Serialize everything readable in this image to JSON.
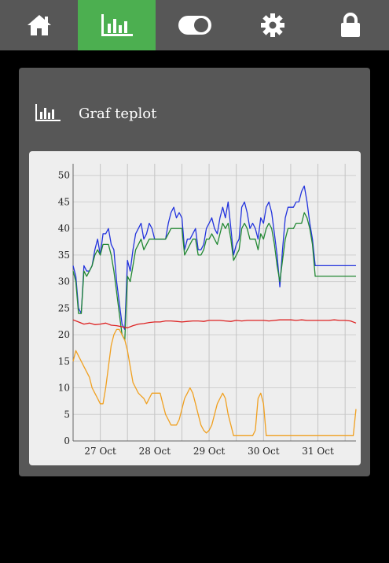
{
  "nav": {
    "items": [
      {
        "icon": "home-icon",
        "active": false
      },
      {
        "icon": "chart-icon",
        "active": true
      },
      {
        "icon": "toggle-icon",
        "active": false
      },
      {
        "icon": "gear-icon",
        "active": false
      },
      {
        "icon": "lock-icon",
        "active": false
      }
    ],
    "colors": {
      "bar": "#575757",
      "active": "#4caf50",
      "icon": "#ffffff"
    }
  },
  "card": {
    "title": "Graf teplot",
    "icon": "chart-icon"
  },
  "chart_data": {
    "type": "line",
    "xlim": [
      0,
      5.2
    ],
    "ylim": [
      0,
      51
    ],
    "yticks": [
      0,
      5,
      10,
      15,
      20,
      25,
      30,
      35,
      40,
      45,
      50
    ],
    "xticks": [
      {
        "x": 0.5,
        "label": "27 Oct"
      },
      {
        "x": 1.5,
        "label": "28 Oct"
      },
      {
        "x": 2.5,
        "label": "29 Oct"
      },
      {
        "x": 3.5,
        "label": "30 Oct"
      },
      {
        "x": 4.5,
        "label": "31 Oct"
      }
    ],
    "x_grid_extra": [
      1.0,
      2.0,
      3.0,
      4.0,
      5.0
    ],
    "grid": true,
    "legend": "none",
    "series": [
      {
        "color": "#2233dd",
        "x": [
          0.0,
          0.05,
          0.1,
          0.15,
          0.2,
          0.25,
          0.3,
          0.35,
          0.4,
          0.45,
          0.5,
          0.55,
          0.6,
          0.65,
          0.7,
          0.75,
          0.8,
          0.85,
          0.9,
          0.95,
          1.0,
          1.05,
          1.1,
          1.15,
          1.2,
          1.25,
          1.3,
          1.35,
          1.4,
          1.45,
          1.5,
          1.55,
          1.6,
          1.65,
          1.7,
          1.75,
          1.8,
          1.85,
          1.9,
          1.95,
          2.0,
          2.05,
          2.1,
          2.15,
          2.2,
          2.25,
          2.3,
          2.35,
          2.4,
          2.45,
          2.5,
          2.55,
          2.6,
          2.65,
          2.7,
          2.75,
          2.8,
          2.85,
          2.9,
          2.95,
          3.0,
          3.05,
          3.1,
          3.15,
          3.2,
          3.25,
          3.3,
          3.35,
          3.4,
          3.45,
          3.5,
          3.55,
          3.6,
          3.65,
          3.7,
          3.75,
          3.8,
          3.85,
          3.9,
          3.95,
          4.0,
          4.05,
          4.1,
          4.15,
          4.2,
          4.25,
          4.3,
          4.35,
          4.4,
          4.45,
          4.5,
          4.55,
          4.6,
          4.65,
          4.7,
          4.75,
          4.8,
          4.85,
          4.9,
          4.95,
          5.0,
          5.05,
          5.1,
          5.15,
          5.2
        ],
        "y": [
          33,
          31,
          25,
          24,
          33,
          32,
          32,
          33,
          36,
          38,
          35,
          39,
          39,
          40,
          37,
          36,
          30,
          26,
          22,
          21,
          34,
          32,
          36,
          39,
          40,
          41,
          38,
          39,
          41,
          40,
          38,
          38,
          38,
          38,
          38,
          41,
          43,
          44,
          42,
          43,
          42,
          36,
          38,
          38,
          39,
          40,
          36,
          36,
          37,
          40,
          41,
          42,
          40,
          39,
          42,
          44,
          42,
          45,
          40,
          35,
          37,
          38,
          44,
          45,
          43,
          40,
          41,
          40,
          38,
          42,
          41,
          44,
          45,
          43,
          39,
          35,
          29,
          36,
          42,
          44,
          44,
          44,
          45,
          45,
          47,
          48,
          45,
          41,
          38,
          33,
          33,
          33,
          33,
          33,
          33,
          33,
          33,
          33,
          33,
          33,
          33,
          33,
          33,
          33,
          33
        ]
      },
      {
        "color": "#228833",
        "x": [
          0.0,
          0.05,
          0.1,
          0.15,
          0.2,
          0.25,
          0.3,
          0.35,
          0.4,
          0.45,
          0.5,
          0.55,
          0.6,
          0.65,
          0.7,
          0.75,
          0.8,
          0.85,
          0.9,
          0.95,
          1.0,
          1.05,
          1.1,
          1.15,
          1.2,
          1.25,
          1.3,
          1.35,
          1.4,
          1.45,
          1.5,
          1.55,
          1.6,
          1.65,
          1.7,
          1.75,
          1.8,
          1.85,
          1.9,
          1.95,
          2.0,
          2.05,
          2.1,
          2.15,
          2.2,
          2.25,
          2.3,
          2.35,
          2.4,
          2.45,
          2.5,
          2.55,
          2.6,
          2.65,
          2.7,
          2.75,
          2.8,
          2.85,
          2.9,
          2.95,
          3.0,
          3.05,
          3.1,
          3.15,
          3.2,
          3.25,
          3.3,
          3.35,
          3.4,
          3.45,
          3.5,
          3.55,
          3.6,
          3.65,
          3.7,
          3.75,
          3.8,
          3.85,
          3.9,
          3.95,
          4.0,
          4.05,
          4.1,
          4.15,
          4.2,
          4.25,
          4.3,
          4.35,
          4.4,
          4.45,
          4.5,
          4.55,
          4.6,
          4.65,
          4.7,
          4.75,
          4.8,
          4.85,
          4.9,
          4.95,
          5.0,
          5.05,
          5.1,
          5.15,
          5.2
        ],
        "y": [
          32,
          30,
          24,
          24,
          32,
          31,
          32,
          33,
          35,
          36,
          35,
          37,
          37,
          37,
          35,
          32,
          28,
          24,
          20,
          19,
          31,
          30,
          33,
          36,
          37,
          38,
          36,
          37,
          38,
          38,
          38,
          38,
          38,
          38,
          38,
          39,
          40,
          40,
          40,
          40,
          40,
          35,
          36,
          37,
          38,
          38,
          35,
          35,
          36,
          38,
          38,
          39,
          38,
          37,
          39,
          41,
          40,
          41,
          38,
          34,
          35,
          36,
          40,
          41,
          40,
          38,
          38,
          38,
          36,
          39,
          38,
          40,
          41,
          40,
          37,
          33,
          30,
          34,
          38,
          40,
          40,
          40,
          41,
          41,
          41,
          43,
          42,
          40,
          37,
          31,
          31,
          31,
          31,
          31,
          31,
          31,
          31,
          31,
          31,
          31,
          31,
          31,
          31,
          31,
          31
        ]
      },
      {
        "color": "#dd2222",
        "x": [
          0.0,
          0.1,
          0.2,
          0.3,
          0.4,
          0.5,
          0.6,
          0.7,
          0.8,
          0.9,
          1.0,
          1.1,
          1.2,
          1.3,
          1.4,
          1.5,
          1.6,
          1.7,
          1.8,
          1.9,
          2.0,
          2.1,
          2.2,
          2.3,
          2.4,
          2.5,
          2.6,
          2.7,
          2.8,
          2.9,
          3.0,
          3.1,
          3.2,
          3.3,
          3.4,
          3.5,
          3.6,
          3.7,
          3.8,
          3.9,
          4.0,
          4.1,
          4.2,
          4.3,
          4.4,
          4.5,
          4.6,
          4.7,
          4.8,
          4.9,
          5.0,
          5.1,
          5.2
        ],
        "y": [
          22.8,
          22.4,
          22.0,
          22.2,
          21.9,
          22.0,
          22.2,
          21.8,
          21.7,
          21.5,
          21.3,
          21.7,
          22.0,
          22.1,
          22.3,
          22.4,
          22.4,
          22.6,
          22.6,
          22.5,
          22.4,
          22.5,
          22.6,
          22.6,
          22.5,
          22.7,
          22.7,
          22.7,
          22.6,
          22.5,
          22.7,
          22.6,
          22.7,
          22.7,
          22.7,
          22.7,
          22.6,
          22.7,
          22.8,
          22.8,
          22.8,
          22.7,
          22.8,
          22.7,
          22.7,
          22.7,
          22.7,
          22.7,
          22.8,
          22.7,
          22.7,
          22.6,
          22.2
        ]
      },
      {
        "color": "#f0a020",
        "x": [
          0.0,
          0.05,
          0.1,
          0.15,
          0.2,
          0.25,
          0.3,
          0.35,
          0.4,
          0.45,
          0.5,
          0.55,
          0.6,
          0.65,
          0.7,
          0.75,
          0.8,
          0.85,
          0.9,
          0.95,
          1.0,
          1.05,
          1.1,
          1.15,
          1.2,
          1.25,
          1.3,
          1.35,
          1.4,
          1.45,
          1.5,
          1.55,
          1.6,
          1.65,
          1.7,
          1.75,
          1.8,
          1.85,
          1.9,
          1.95,
          2.0,
          2.05,
          2.1,
          2.15,
          2.2,
          2.25,
          2.3,
          2.35,
          2.4,
          2.45,
          2.5,
          2.55,
          2.6,
          2.65,
          2.7,
          2.75,
          2.8,
          2.85,
          2.9,
          2.95,
          3.0,
          3.05,
          3.1,
          3.15,
          3.2,
          3.25,
          3.3,
          3.35,
          3.4,
          3.45,
          3.5,
          3.55,
          3.6,
          3.65,
          3.7,
          3.75,
          3.8,
          3.85,
          3.9,
          3.95,
          4.0,
          4.05,
          4.1,
          4.15,
          4.2,
          4.25,
          4.3,
          4.35,
          4.4,
          4.45,
          4.5,
          4.55,
          4.6,
          4.65,
          4.7,
          4.75,
          4.8,
          4.85,
          4.9,
          4.95,
          5.0,
          5.05,
          5.1,
          5.15,
          5.2
        ],
        "y": [
          15,
          17,
          16,
          15,
          14,
          13,
          12,
          10,
          9,
          8,
          7,
          7,
          10,
          14,
          18,
          20,
          21,
          21,
          20,
          19,
          17,
          14,
          11,
          10,
          9,
          8.5,
          8,
          7,
          8,
          9,
          9,
          9,
          9,
          7,
          5,
          4,
          3,
          3,
          3,
          4,
          6,
          8,
          9,
          10,
          9,
          7,
          5,
          3,
          2,
          1.5,
          2,
          3,
          5,
          7,
          8,
          9,
          8,
          5,
          3,
          1,
          1,
          1,
          1,
          1,
          1,
          1,
          1,
          2,
          8,
          9,
          7,
          1,
          1,
          1,
          1,
          1,
          1,
          1,
          1,
          1,
          1,
          1,
          1,
          1,
          1,
          1,
          1,
          1,
          1,
          1,
          1,
          1,
          1,
          1,
          1,
          1,
          1,
          1,
          1,
          1,
          1,
          1,
          1,
          1,
          6
        ]
      }
    ]
  }
}
